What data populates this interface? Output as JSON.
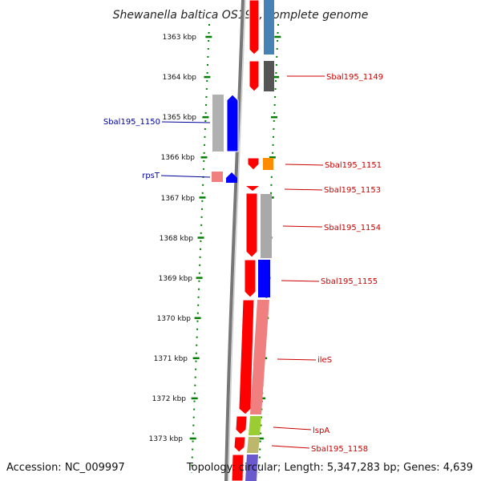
{
  "title": "Shewanella baltica OS195, complete genome",
  "footer": {
    "accession": "Accession: NC_009997",
    "summary": "Topology: circular; Length: 5,347,283 bp; Genes: 4,639"
  },
  "axis": {
    "ticks": [
      "1363 kbp",
      "1364 kbp",
      "1365 kbp",
      "1366 kbp",
      "1367 kbp",
      "1368 kbp",
      "1369 kbp",
      "1370 kbp",
      "1371 kbp",
      "1372 kbp",
      "1373 kbp"
    ]
  },
  "colors": {
    "forward_cds": "#ff0000",
    "reverse_cds": "#0000ff",
    "forward_label": "#cc0000",
    "reverse_label": "#000099",
    "backbone": "#808080",
    "tick": "#008000"
  },
  "gene_labels": [
    {
      "text": "Sbal195_1149",
      "strand": "forward"
    },
    {
      "text": "Sbal195_1150",
      "strand": "reverse"
    },
    {
      "text": "Sbal195_1151",
      "strand": "forward"
    },
    {
      "text": "rpsT",
      "strand": "reverse"
    },
    {
      "text": "Sbal195_1153",
      "strand": "forward"
    },
    {
      "text": "Sbal195_1154",
      "strand": "forward"
    },
    {
      "text": "Sbal195_1155",
      "strand": "forward"
    },
    {
      "text": "ileS",
      "strand": "forward"
    },
    {
      "text": "lspA",
      "strand": "forward"
    },
    {
      "text": "Sbal195_1158",
      "strand": "forward"
    }
  ]
}
